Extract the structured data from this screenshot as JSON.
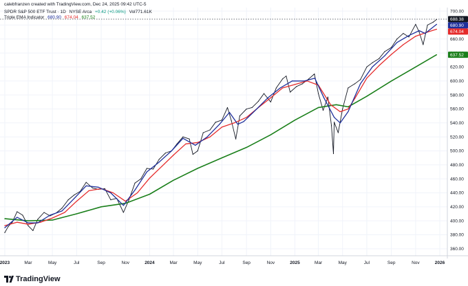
{
  "header": {
    "credit": "calebfranzen created with TradingView.com, Dec 24, 2025 09:42 UTC-5",
    "symbol": "SPDR S&P 500 ETF Trust · 1D",
    "exchange": "NYSE Arca",
    "change": "+0.42 (+0.06%)",
    "volume": "Vol771.61K",
    "indicator": "Triple EMA Indicator",
    "ema_fast_value": "680.90",
    "ema_mid_value": "674.04",
    "ema_slow_value": "637.52"
  },
  "price_labels": {
    "last": "688.38",
    "ema_fast": "680.90",
    "ema_mid": "674.04",
    "ema_slow": "637.52"
  },
  "logo_text": "TradingView",
  "colors": {
    "price": "#131722",
    "ema_fast": "#1e2f9b",
    "ema_mid": "#e52b2b",
    "ema_slow": "#1a7f1a",
    "last_label": "#131722",
    "grid": "#f0f3fa"
  },
  "chart_data": {
    "type": "line",
    "x_tick_labels": [
      "2023",
      "Mar",
      "May",
      "Jul",
      "Sep",
      "Nov",
      "2024",
      "Mar",
      "May",
      "Jul",
      "Sep",
      "Nov",
      "2025",
      "Mar",
      "May",
      "Jul",
      "Sep",
      "Nov",
      "2026"
    ],
    "y_tick_labels": [
      360,
      380,
      400,
      420,
      440,
      460,
      480,
      500,
      520,
      540,
      560,
      580,
      600,
      620,
      640,
      660,
      680,
      700
    ],
    "ylim": [
      350,
      705
    ],
    "xlim": [
      "2022-12-20",
      "2026-01-20"
    ],
    "grid": true,
    "series": [
      {
        "key": "price",
        "x": [
          "2023-01-01",
          "2023-01-10",
          "2023-01-20",
          "2023-02-01",
          "2023-02-15",
          "2023-03-01",
          "2023-03-13",
          "2023-03-25",
          "2023-04-10",
          "2023-04-25",
          "2023-05-10",
          "2023-05-25",
          "2023-06-10",
          "2023-06-25",
          "2023-07-10",
          "2023-07-25",
          "2023-08-10",
          "2023-08-25",
          "2023-09-10",
          "2023-09-25",
          "2023-10-10",
          "2023-10-27",
          "2023-11-10",
          "2023-11-25",
          "2023-12-10",
          "2023-12-25",
          "2024-01-10",
          "2024-01-25",
          "2024-02-10",
          "2024-02-25",
          "2024-03-10",
          "2024-03-25",
          "2024-04-10",
          "2024-04-19",
          "2024-05-01",
          "2024-05-15",
          "2024-06-01",
          "2024-06-15",
          "2024-07-01",
          "2024-07-15",
          "2024-07-25",
          "2024-08-05",
          "2024-08-15",
          "2024-09-01",
          "2024-09-15",
          "2024-10-01",
          "2024-10-15",
          "2024-11-01",
          "2024-11-15",
          "2024-12-01",
          "2024-12-10",
          "2024-12-20",
          "2025-01-05",
          "2025-01-20",
          "2025-02-05",
          "2025-02-19",
          "2025-03-01",
          "2025-03-13",
          "2025-03-25",
          "2025-04-03",
          "2025-04-08",
          "2025-04-10",
          "2025-04-20",
          "2025-05-01",
          "2025-05-15",
          "2025-06-01",
          "2025-06-15",
          "2025-07-01",
          "2025-07-15",
          "2025-08-01",
          "2025-08-15",
          "2025-09-01",
          "2025-09-15",
          "2025-10-01",
          "2025-10-15",
          "2025-11-01",
          "2025-11-10",
          "2025-11-20",
          "2025-12-01",
          "2025-12-15",
          "2025-12-24"
        ],
        "values": [
          383,
          392,
          398,
          413,
          408,
          393,
          386,
          402,
          412,
          407,
          411,
          418,
          430,
          437,
          442,
          455,
          447,
          445,
          446,
          430,
          432,
          412,
          430,
          454,
          460,
          475,
          474,
          488,
          497,
          500,
          510,
          520,
          517,
          495,
          500,
          526,
          530,
          541,
          544,
          562,
          543,
          517,
          550,
          560,
          562,
          571,
          582,
          570,
          590,
          603,
          607,
          584,
          592,
          596,
          603,
          610,
          582,
          558,
          577,
          536,
          496,
          541,
          526,
          560,
          590,
          596,
          602,
          620,
          626,
          632,
          642,
          648,
          660,
          668,
          663,
          681,
          670,
          652,
          680,
          684,
          688
        ]
      },
      {
        "key": "ema_fast",
        "x": [
          "2023-01-01",
          "2023-02-01",
          "2023-03-01",
          "2023-03-25",
          "2023-04-25",
          "2023-05-25",
          "2023-06-25",
          "2023-07-25",
          "2023-08-25",
          "2023-09-25",
          "2023-10-27",
          "2023-11-25",
          "2023-12-25",
          "2024-01-25",
          "2024-02-25",
          "2024-03-25",
          "2024-04-25",
          "2024-05-25",
          "2024-06-25",
          "2024-07-20",
          "2024-08-10",
          "2024-08-25",
          "2024-09-25",
          "2024-10-25",
          "2024-11-25",
          "2024-12-25",
          "2025-01-25",
          "2025-02-20",
          "2025-03-15",
          "2025-04-10",
          "2025-04-25",
          "2025-05-15",
          "2025-06-15",
          "2025-07-15",
          "2025-08-15",
          "2025-09-15",
          "2025-10-15",
          "2025-11-10",
          "2025-11-25",
          "2025-12-24"
        ],
        "values": [
          390,
          405,
          397,
          397,
          408,
          414,
          432,
          450,
          448,
          440,
          422,
          444,
          470,
          484,
          500,
          518,
          508,
          520,
          538,
          555,
          538,
          542,
          559,
          576,
          590,
          600,
          600,
          604,
          576,
          548,
          540,
          556,
          596,
          620,
          636,
          655,
          665,
          672,
          668,
          681
        ]
      },
      {
        "key": "ema_mid",
        "x": [
          "2023-01-01",
          "2023-02-01",
          "2023-03-01",
          "2023-04-01",
          "2023-05-01",
          "2023-06-01",
          "2023-07-01",
          "2023-08-01",
          "2023-09-01",
          "2023-10-01",
          "2023-11-01",
          "2023-12-01",
          "2024-01-01",
          "2024-02-01",
          "2024-03-01",
          "2024-04-01",
          "2024-05-01",
          "2024-06-01",
          "2024-07-01",
          "2024-08-01",
          "2024-09-01",
          "2024-10-01",
          "2024-11-01",
          "2024-12-01",
          "2025-01-01",
          "2025-02-01",
          "2025-03-01",
          "2025-04-01",
          "2025-04-25",
          "2025-05-15",
          "2025-06-01",
          "2025-07-01",
          "2025-08-01",
          "2025-09-01",
          "2025-10-01",
          "2025-11-01",
          "2025-12-01",
          "2025-12-24"
        ],
        "values": [
          393,
          398,
          395,
          398,
          404,
          412,
          428,
          443,
          446,
          440,
          428,
          440,
          461,
          478,
          494,
          510,
          512,
          520,
          534,
          540,
          548,
          562,
          576,
          590,
          595,
          600,
          594,
          566,
          556,
          560,
          575,
          604,
          622,
          638,
          652,
          664,
          670,
          674
        ]
      },
      {
        "key": "ema_slow",
        "x": [
          "2023-01-01",
          "2023-03-01",
          "2023-05-01",
          "2023-07-01",
          "2023-09-01",
          "2023-11-01",
          "2024-01-01",
          "2024-03-01",
          "2024-05-01",
          "2024-07-01",
          "2024-09-01",
          "2024-11-01",
          "2025-01-01",
          "2025-03-01",
          "2025-04-15",
          "2025-05-15",
          "2025-07-01",
          "2025-09-01",
          "2025-11-01",
          "2025-12-24"
        ],
        "values": [
          403,
          400,
          401,
          410,
          420,
          425,
          438,
          458,
          475,
          490,
          505,
          523,
          544,
          562,
          566,
          563,
          578,
          600,
          620,
          637.5
        ]
      }
    ]
  }
}
